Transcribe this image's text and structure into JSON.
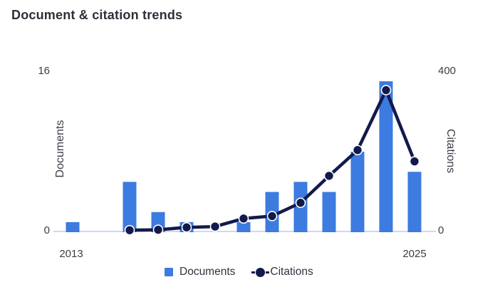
{
  "title": "Document & citation trends",
  "colors": {
    "bar": "#3c7be0",
    "line": "#121a4d",
    "marker_ring": "#ffffff",
    "axis_line": "#ccd9f2",
    "text": "#3d3d46",
    "title_text": "#2e2e38"
  },
  "axes": {
    "left": {
      "title": "Documents",
      "max_tick": "16",
      "min_tick": "0"
    },
    "right": {
      "title": "Citations",
      "max_tick": "400",
      "min_tick": "0"
    },
    "x": {
      "first": "2013",
      "last": "2025"
    }
  },
  "legend": {
    "documents_label": "Documents",
    "citations_label": "Citations"
  },
  "chart_data": {
    "type": "bar+line combo",
    "title": "Document & citation trends",
    "categories": [
      2013,
      2014,
      2015,
      2016,
      2017,
      2018,
      2019,
      2020,
      2021,
      2022,
      2023,
      2024,
      2025
    ],
    "series": [
      {
        "name": "Documents",
        "type": "bar",
        "axis": "left",
        "values": [
          1,
          0,
          5,
          2,
          1,
          0,
          1,
          4,
          5,
          4,
          8,
          15,
          6
        ]
      },
      {
        "name": "Citations",
        "type": "line",
        "axis": "right",
        "values": [
          null,
          null,
          5,
          6,
          12,
          14,
          34,
          40,
          73,
          140,
          204,
          353,
          176
        ]
      }
    ],
    "left_axis": {
      "label": "Documents",
      "range": [
        0,
        16
      ],
      "ticks": [
        0,
        16
      ]
    },
    "right_axis": {
      "label": "Citations",
      "range": [
        0,
        400
      ],
      "ticks": [
        0,
        400
      ]
    },
    "x_axis": {
      "visible_labels": [
        "2013",
        "2025"
      ]
    },
    "grid": false,
    "legend_position": "bottom-center"
  }
}
